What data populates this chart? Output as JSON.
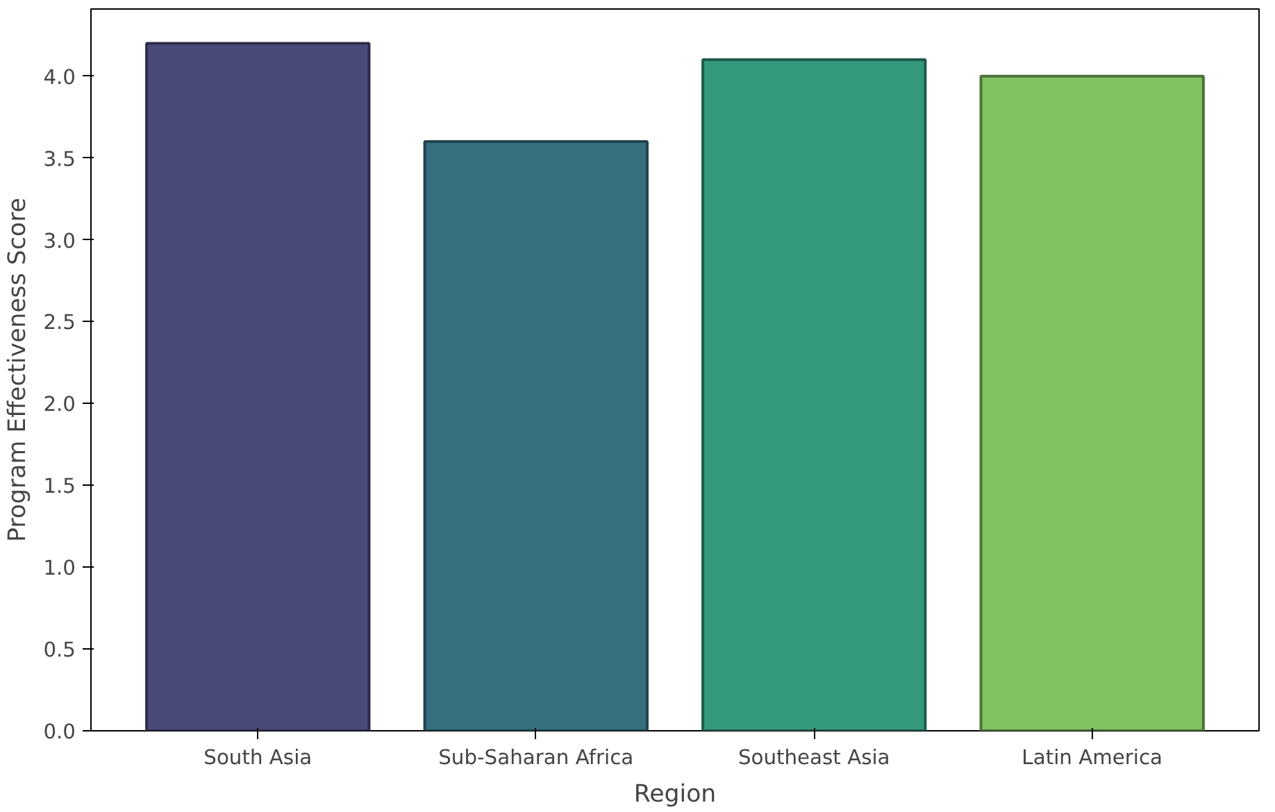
{
  "chart_data": {
    "type": "bar",
    "xlabel": "Region",
    "ylabel": "Program Effectiveness Score",
    "categories": [
      "South Asia",
      "Sub-Saharan Africa",
      "Southeast Asia",
      "Latin America"
    ],
    "values": [
      4.2,
      3.6,
      4.1,
      4.0
    ],
    "colors": [
      "#4a4a7a",
      "#36707f",
      "#35997c",
      "#80c160"
    ],
    "ylim": [
      0,
      4.41
    ],
    "yticks": [
      {
        "value": 0,
        "label": "0.0"
      },
      0.5,
      {
        "value": 1,
        "label": "1.0"
      },
      1.5,
      {
        "value": 2,
        "label": "2.0"
      },
      2.5,
      {
        "value": 3,
        "label": "3.0"
      },
      3.5,
      {
        "value": 4,
        "label": "4.0"
      }
    ],
    "grid": false
  }
}
